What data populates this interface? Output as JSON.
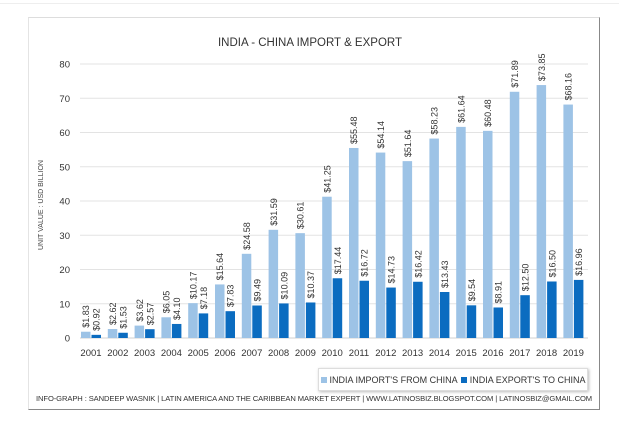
{
  "chart_data": {
    "type": "bar",
    "title": "INDIA - CHINA IMPORT & EXPORT",
    "ylabel": "UNIT VALUE : USD BILLION",
    "xlabel": "",
    "ylim": [
      0,
      80
    ],
    "yticks": [
      0,
      10,
      20,
      30,
      40,
      50,
      60,
      70,
      80
    ],
    "grid": true,
    "legend_position": "bottom-right",
    "categories": [
      "2001",
      "2002",
      "2003",
      "2004",
      "2005",
      "2006",
      "2007",
      "2008",
      "2009",
      "2010",
      "2011",
      "2012",
      "2013",
      "2014",
      "2015",
      "2016",
      "2017",
      "2018",
      "2019"
    ],
    "series": [
      {
        "name": "INDIA IMPORT'S FROM CHINA",
        "color": "#9dc3e6",
        "values": [
          1.83,
          2.62,
          3.62,
          6.05,
          10.17,
          15.64,
          24.58,
          31.59,
          30.61,
          41.25,
          55.48,
          54.14,
          51.64,
          58.23,
          61.64,
          60.48,
          71.89,
          73.85,
          68.16
        ]
      },
      {
        "name": "INDIA EXPORT'S TO CHINA",
        "color": "#0b6cc0",
        "values": [
          0.92,
          1.53,
          2.57,
          4.1,
          7.18,
          7.83,
          9.49,
          10.09,
          10.37,
          17.44,
          16.72,
          14.73,
          16.42,
          13.43,
          9.54,
          8.91,
          12.5,
          16.5,
          16.96
        ]
      }
    ]
  },
  "footer": {
    "credit": "INFO-GRAPH : SANDEEP WASNIK | LATIN AMERICA AND THE CARIBBEAN MARKET EXPERT | WWW.LATINOSBIZ.BLOGSPOT.COM | LATINOSBIZ@GMAIL.COM"
  }
}
